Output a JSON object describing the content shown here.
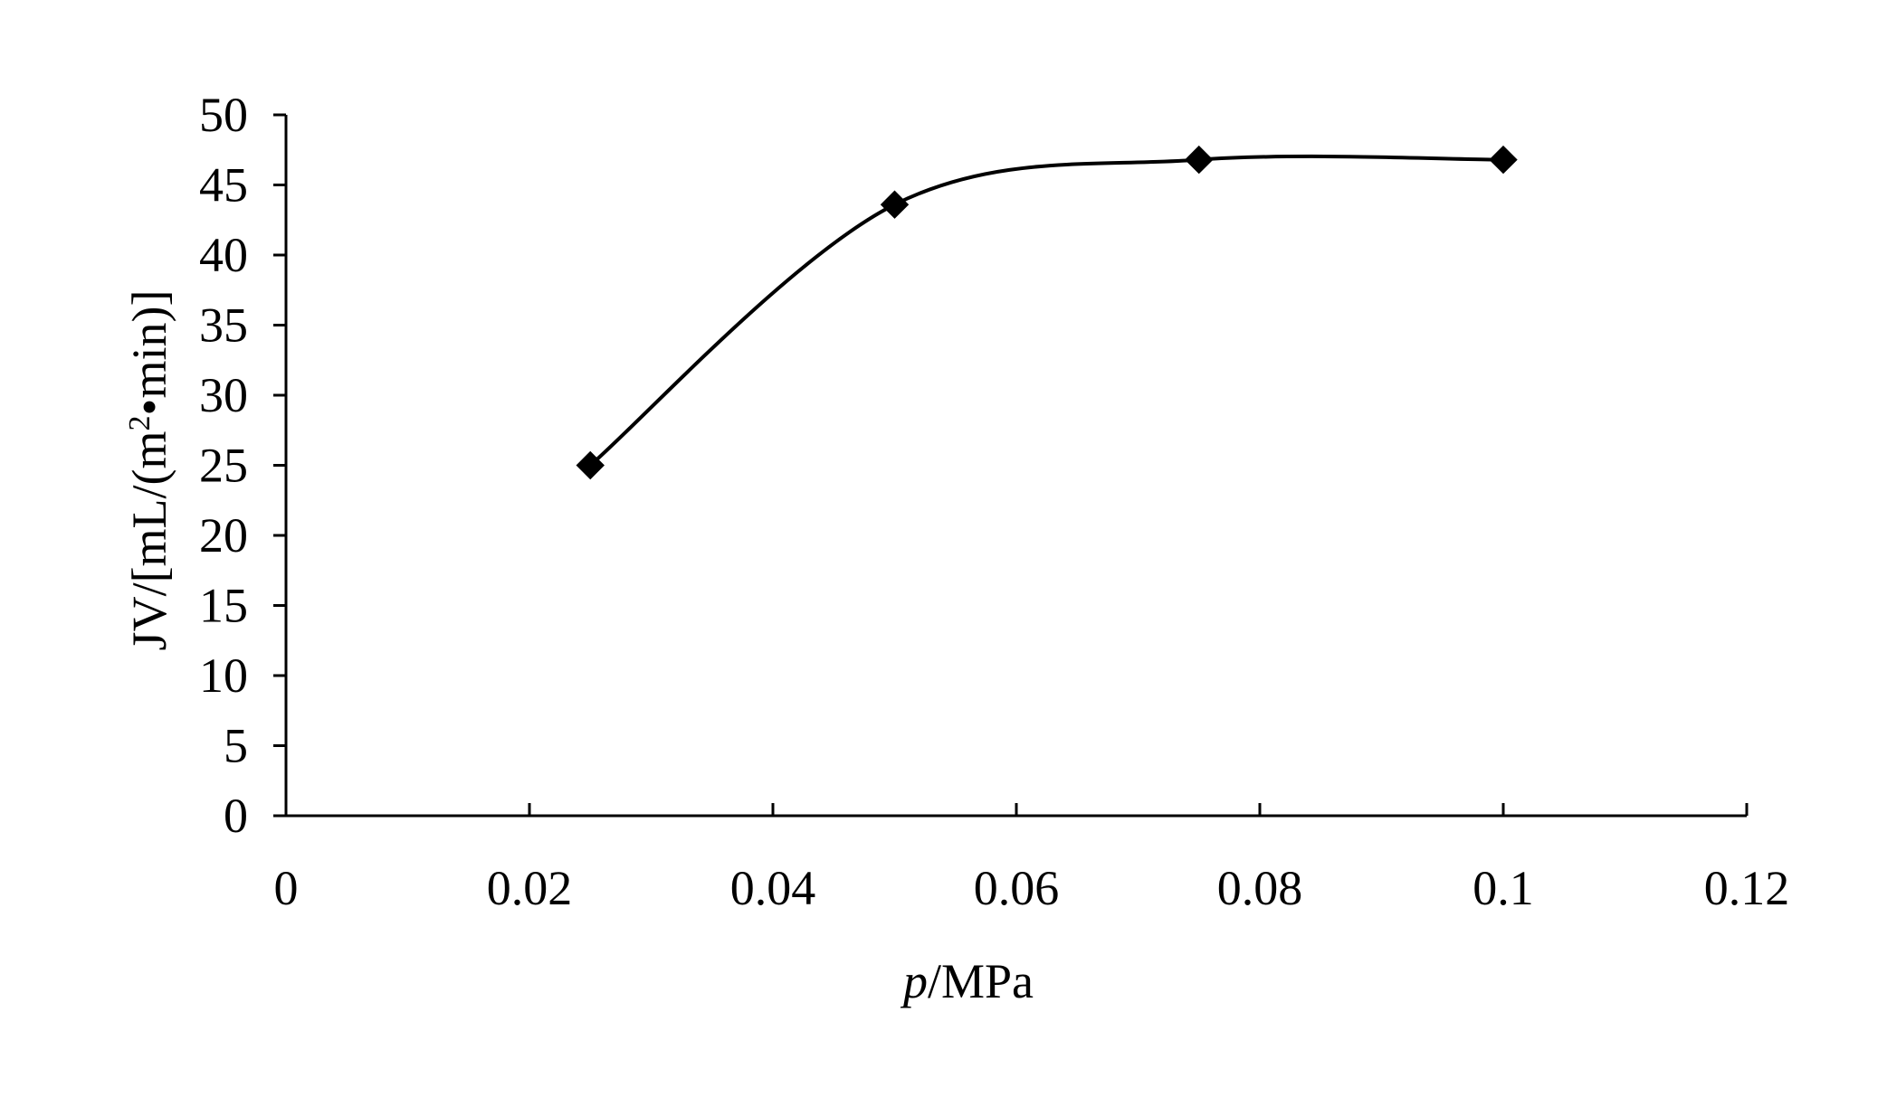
{
  "chart_data": {
    "type": "line",
    "title": "",
    "xlabel": {
      "italic": "p",
      "rest": "/MPa"
    },
    "ylabel": {
      "before_sup": "JV/[mL/(m",
      "sup": "2",
      "after_sup": "•min)]"
    },
    "xlim": [
      0,
      0.12
    ],
    "ylim": [
      0,
      50
    ],
    "x_ticks": [
      0,
      0.02,
      0.04,
      0.06,
      0.08,
      0.1,
      0.12
    ],
    "x_tick_labels": [
      "0",
      "0.02",
      "0.04",
      "0.06",
      "0.08",
      "0.1",
      "0.12"
    ],
    "y_ticks": [
      0,
      5,
      10,
      15,
      20,
      25,
      30,
      35,
      40,
      45,
      50
    ],
    "y_tick_labels": [
      "0",
      "5",
      "10",
      "15",
      "20",
      "25",
      "30",
      "35",
      "40",
      "45",
      "50"
    ],
    "grid": false,
    "legend": "none",
    "line_style": "smoothed",
    "marker": "diamond",
    "series": [
      {
        "x": [
          0.025,
          0.05,
          0.075,
          0.1
        ],
        "y": [
          25.0,
          43.6,
          46.8,
          46.8
        ],
        "color": "#000000"
      }
    ]
  }
}
